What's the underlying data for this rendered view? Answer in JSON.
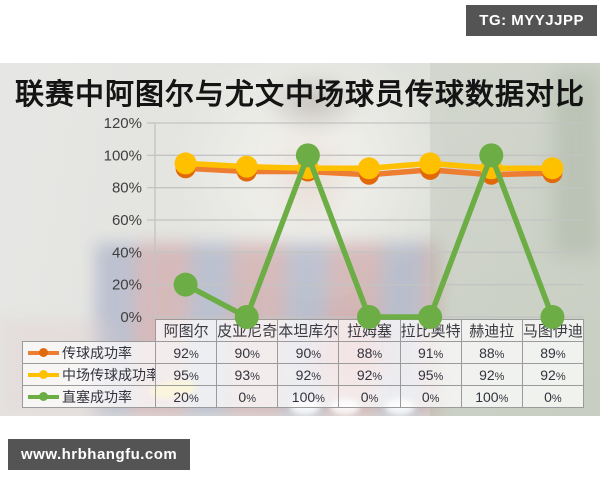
{
  "page": {
    "top_badge": "TG: MYYJJPP",
    "bottom_badge": "www.hrbhangfu.com"
  },
  "chart_data": {
    "type": "line",
    "title": "联赛中阿图尔与尤文中场球员传球数据对比",
    "categories": [
      "阿图尔",
      "皮亚尼奇",
      "本坦库尔",
      "拉姆塞",
      "拉比奥特",
      "赫迪拉",
      "马图伊迪"
    ],
    "series": [
      {
        "name": "传球成功率",
        "color": "#ED7D31",
        "marker_color": "#E2690B",
        "values": [
          92,
          90,
          90,
          88,
          91,
          88,
          89
        ]
      },
      {
        "name": "中场传球成功率",
        "color": "#FFC000",
        "marker_color": "#FFC000",
        "values": [
          95,
          93,
          92,
          92,
          95,
          92,
          92
        ]
      },
      {
        "name": "直塞成功率",
        "color": "#6CAE45",
        "marker_color": "#6CAE45",
        "values": [
          20,
          0,
          100,
          0,
          0,
          100,
          0
        ]
      }
    ],
    "ylim": [
      0,
      120
    ],
    "ytick_step": 20,
    "ytick_labels": [
      "0%",
      "20%",
      "40%",
      "60%",
      "80%",
      "100%",
      "120%"
    ],
    "value_suffix": "%",
    "grid": true,
    "legend_position": "table-left",
    "colors": {
      "gridline": "#c3c3c3",
      "axis_text": "#3f3f3f",
      "badge_bg": "#545454"
    }
  }
}
